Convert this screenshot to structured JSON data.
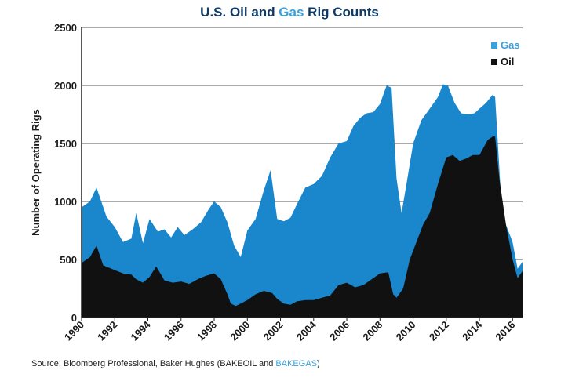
{
  "title": {
    "part1": "U.S. Oil and ",
    "part2": "Gas",
    "part3": " Rig Counts"
  },
  "source": {
    "prefix": "Source: Bloomberg Professional, Baker Hughes (BAKEOIL and ",
    "highlight": "BAKEGAS",
    "suffix": ")"
  },
  "colors": {
    "gas": "#1a86cc",
    "oil": "#111111",
    "title": "#0d3a66",
    "accent": "#3aa0dc"
  },
  "chart_data": {
    "type": "area",
    "stacked": true,
    "ylabel": "Number of Operating Rigs",
    "xlabel": "",
    "ylim": [
      0,
      2500
    ],
    "xlim": [
      1990,
      2016.6
    ],
    "yticks": [
      "0",
      "500",
      "1000",
      "1500",
      "2000",
      "2500"
    ],
    "xticks": [
      "1990",
      "1992",
      "1994",
      "1996",
      "1998",
      "2000",
      "2002",
      "2004",
      "2006",
      "2008",
      "2010",
      "2012",
      "2014",
      "2016"
    ],
    "legend_position": "top-right",
    "grid": "horizontal",
    "total_x": [
      1990,
      1990.5,
      1990.9,
      1991.5,
      1992.0,
      1992.5,
      1993.0,
      1993.3,
      1993.7,
      1994.1,
      1994.6,
      1995.0,
      1995.4,
      1995.8,
      1996.2,
      1996.7,
      1997.2,
      1997.7,
      1998.0,
      1998.4,
      1998.8,
      1999.2,
      1999.6,
      2000.0,
      2000.5,
      2001.0,
      2001.4,
      2001.8,
      2002.2,
      2002.6,
      2003.0,
      2003.5,
      2004.0,
      2004.5,
      2005.0,
      2005.5,
      2006.0,
      2006.4,
      2006.8,
      2007.2,
      2007.6,
      2008.0,
      2008.4,
      2008.7,
      2009.0,
      2009.3,
      2009.6,
      2010.0,
      2010.5,
      2011.0,
      2011.5,
      2011.8,
      2012.1,
      2012.5,
      2012.9,
      2013.3,
      2013.7,
      2014.0,
      2014.4,
      2014.8,
      2014.95,
      2015.3,
      2015.6,
      2016.0,
      2016.3,
      2016.6
    ],
    "total_y": [
      950,
      1000,
      1120,
      870,
      780,
      650,
      680,
      900,
      640,
      850,
      740,
      760,
      690,
      780,
      710,
      760,
      820,
      940,
      1000,
      950,
      820,
      620,
      520,
      750,
      850,
      1100,
      1270,
      850,
      830,
      860,
      980,
      1120,
      1150,
      1220,
      1380,
      1500,
      1520,
      1650,
      1720,
      1760,
      1770,
      1840,
      2000,
      1980,
      1200,
      900,
      1150,
      1500,
      1700,
      1800,
      1900,
      2010,
      2000,
      1850,
      1760,
      1750,
      1760,
      1800,
      1850,
      1920,
      1900,
      1050,
      800,
      650,
      420,
      480
    ],
    "series": [
      {
        "name": "Gas",
        "color": "#1a86cc"
      },
      {
        "name": "Oil",
        "color": "#111111",
        "x": [
          1990,
          1990.5,
          1990.9,
          1991.3,
          1991.8,
          1992.5,
          1993.0,
          1993.3,
          1993.7,
          1994.1,
          1994.5,
          1995.0,
          1995.5,
          1996.0,
          1996.5,
          1997.0,
          1997.5,
          1998.0,
          1998.4,
          1998.8,
          1999.0,
          1999.3,
          1999.6,
          2000.0,
          2000.5,
          2001.0,
          2001.5,
          2001.8,
          2002.2,
          2002.6,
          2003.0,
          2003.5,
          2004.0,
          2004.5,
          2005.0,
          2005.5,
          2006.0,
          2006.5,
          2007.0,
          2007.5,
          2008.0,
          2008.5,
          2008.8,
          2009.0,
          2009.4,
          2009.8,
          2010.2,
          2010.6,
          2011.0,
          2011.5,
          2012.0,
          2012.4,
          2012.8,
          2013.2,
          2013.6,
          2014.0,
          2014.5,
          2014.8,
          2014.95,
          2015.2,
          2015.6,
          2016.0,
          2016.3,
          2016.6
        ],
        "y": [
          470,
          520,
          620,
          450,
          420,
          380,
          370,
          330,
          300,
          350,
          440,
          320,
          300,
          310,
          290,
          330,
          360,
          380,
          330,
          200,
          120,
          100,
          120,
          150,
          200,
          230,
          210,
          160,
          120,
          110,
          140,
          150,
          150,
          170,
          190,
          280,
          300,
          260,
          280,
          330,
          380,
          390,
          200,
          170,
          250,
          500,
          650,
          800,
          900,
          1150,
          1380,
          1400,
          1350,
          1370,
          1400,
          1400,
          1530,
          1560,
          1560,
          1200,
          800,
          500,
          340,
          400
        ]
      }
    ]
  }
}
